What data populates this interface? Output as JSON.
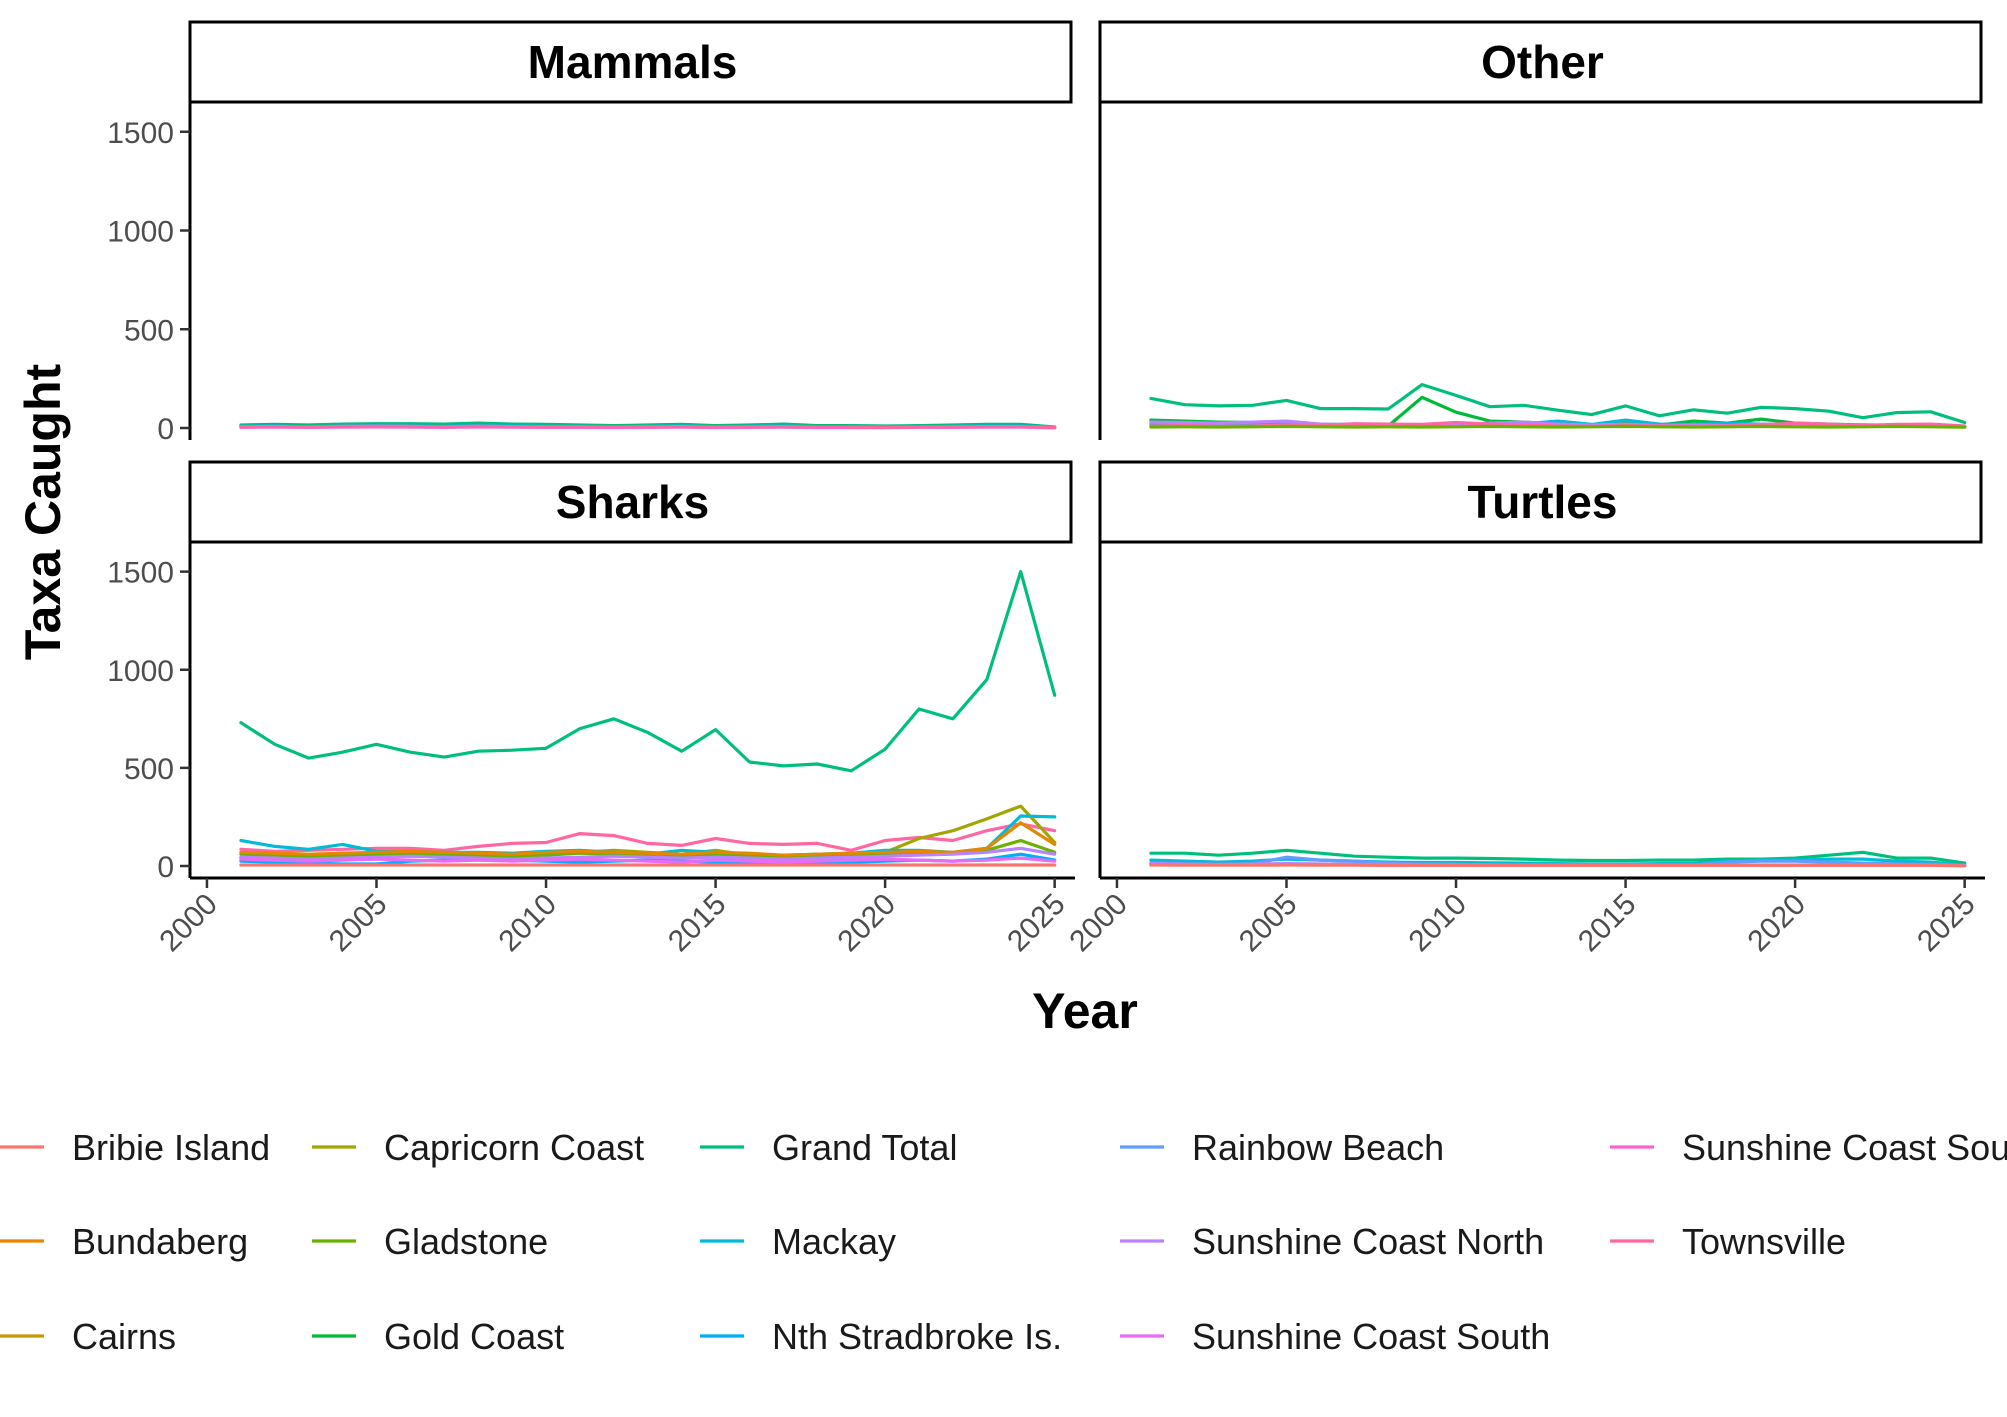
{
  "chart_data": {
    "type": "line",
    "xlabel": "Year",
    "ylabel": "Taxa Caught",
    "xlim": [
      2000,
      2025
    ],
    "ylim": [
      0,
      1600
    ],
    "x_ticks": [
      2000,
      2005,
      2010,
      2015,
      2020,
      2025
    ],
    "y_ticks": [
      0,
      500,
      1000,
      1500
    ],
    "legend_position": "bottom",
    "x": [
      2001,
      2002,
      2003,
      2004,
      2005,
      2006,
      2007,
      2008,
      2009,
      2010,
      2011,
      2012,
      2013,
      2014,
      2015,
      2016,
      2017,
      2018,
      2019,
      2020,
      2021,
      2022,
      2023,
      2024,
      2025
    ],
    "colors": {
      "Bribie Island": "#F8766D",
      "Bundaberg": "#E58700",
      "Cairns": "#C99800",
      "Capricorn Coast": "#A3A500",
      "Gladstone": "#6BB100",
      "Gold Coast": "#00BA38",
      "Grand Total": "#00BF7D",
      "Mackay": "#00BCD8",
      "Nth Stradbroke Is.": "#00B0F6",
      "Rainbow Beach": "#619CFF",
      "Sunshine Coast North": "#B983FF",
      "Sunshine Coast South": "#E76BF3",
      "Sunshine Coast Sou": "#FD61D1",
      "Townsville": "#FF67A4"
    },
    "legend_items": [
      "Bribie Island",
      "Bundaberg",
      "Cairns",
      "Capricorn Coast",
      "Gladstone",
      "Gold Coast",
      "Grand Total",
      "Mackay",
      "Nth Stradbroke Is.",
      "Rainbow Beach",
      "Sunshine Coast North",
      "Sunshine Coast South",
      "Sunshine Coast Sou",
      "Townsville"
    ],
    "panels": [
      {
        "title": "Mammals",
        "series": [
          {
            "name": "Grand Total",
            "values": [
              15,
              18,
              15,
              20,
              22,
              22,
              20,
              25,
              20,
              18,
              15,
              12,
              15,
              18,
              12,
              15,
              20,
              12,
              12,
              10,
              12,
              15,
              18,
              18,
              5
            ]
          },
          {
            "name": "Mackay",
            "values": [
              8,
              10,
              6,
              10,
              12,
              10,
              8,
              12,
              10,
              8,
              8,
              6,
              8,
              10,
              6,
              8,
              10,
              6,
              6,
              5,
              6,
              8,
              10,
              10,
              3
            ]
          },
          {
            "name": "Rainbow Beach",
            "values": [
              5,
              8,
              4,
              6,
              8,
              6,
              5,
              6,
              5,
              4,
              5,
              3,
              4,
              6,
              3,
              4,
              5,
              3,
              3,
              3,
              4,
              5,
              6,
              6,
              2
            ]
          },
          {
            "name": "Sunshine Coast South",
            "values": [
              3,
              4,
              3,
              4,
              5,
              4,
              3,
              5,
              4,
              3,
              3,
              2,
              3,
              4,
              2,
              3,
              4,
              2,
              2,
              2,
              3,
              3,
              4,
              4,
              1
            ]
          },
          {
            "name": "Townsville",
            "values": [
              6,
              7,
              5,
              8,
              9,
              8,
              6,
              9,
              7,
              6,
              6,
              4,
              6,
              7,
              4,
              6,
              7,
              4,
              4,
              3,
              4,
              6,
              7,
              7,
              2
            ]
          }
        ]
      },
      {
        "title": "Other",
        "series": [
          {
            "name": "Grand Total",
            "values": [
              150,
              118,
              112,
              115,
              140,
              98,
              98,
              96,
              220,
              165,
              108,
              115,
              90,
              68,
              112,
              62,
              92,
              75,
              105,
              98,
              85,
              52,
              78,
              82,
              28
            ]
          },
          {
            "name": "Gold Coast",
            "values": [
              40,
              35,
              30,
              28,
              25,
              15,
              12,
              10,
              155,
              80,
              35,
              30,
              20,
              15,
              25,
              15,
              35,
              25,
              45,
              25,
              20,
              15,
              15,
              15,
              8
            ]
          },
          {
            "name": "Mackay",
            "values": [
              20,
              22,
              18,
              20,
              25,
              18,
              18,
              16,
              15,
              18,
              20,
              22,
              35,
              18,
              40,
              20,
              18,
              25,
              20,
              15,
              12,
              10,
              12,
              15,
              8
            ]
          },
          {
            "name": "Sunshine Coast North",
            "values": [
              30,
              28,
              25,
              30,
              35,
              20,
              15,
              12,
              10,
              15,
              25,
              30,
              20,
              15,
              20,
              12,
              15,
              12,
              20,
              18,
              15,
              10,
              15,
              12,
              5
            ]
          },
          {
            "name": "Townsville",
            "values": [
              10,
              12,
              8,
              10,
              15,
              12,
              22,
              20,
              18,
              28,
              20,
              15,
              10,
              8,
              12,
              10,
              8,
              10,
              15,
              25,
              20,
              12,
              18,
              20,
              10
            ]
          },
          {
            "name": "Gladstone",
            "values": [
              5,
              6,
              5,
              6,
              8,
              6,
              5,
              6,
              5,
              6,
              8,
              6,
              5,
              6,
              8,
              6,
              5,
              6,
              8,
              6,
              5,
              6,
              8,
              6,
              4
            ]
          }
        ]
      },
      {
        "title": "Sharks",
        "series": [
          {
            "name": "Grand Total",
            "values": [
              730,
              620,
              550,
              580,
              620,
              580,
              555,
              585,
              590,
              600,
              700,
              750,
              680,
              585,
              695,
              530,
              510,
              520,
              485,
              595,
              800,
              750,
              950,
              1500,
              870
            ]
          },
          {
            "name": "Townsville",
            "values": [
              85,
              75,
              80,
              85,
              90,
              90,
              80,
              100,
              115,
              120,
              165,
              155,
              115,
              105,
              140,
              115,
              110,
              115,
              80,
              130,
              145,
              130,
              180,
              215,
              180
            ]
          },
          {
            "name": "Capricorn Coast",
            "values": [
              40,
              45,
              50,
              55,
              60,
              60,
              55,
              60,
              55,
              60,
              70,
              80,
              70,
              60,
              80,
              55,
              50,
              60,
              55,
              70,
              140,
              180,
              240,
              305,
              120
            ]
          },
          {
            "name": "Mackay",
            "values": [
              130,
              100,
              85,
              110,
              75,
              75,
              70,
              70,
              65,
              75,
              80,
              70,
              60,
              80,
              70,
              60,
              55,
              60,
              65,
              80,
              80,
              70,
              90,
              255,
              250
            ]
          },
          {
            "name": "Gladstone",
            "values": [
              60,
              55,
              50,
              55,
              60,
              65,
              60,
              55,
              50,
              55,
              65,
              60,
              55,
              50,
              60,
              55,
              45,
              50,
              55,
              60,
              70,
              65,
              80,
              130,
              70
            ]
          },
          {
            "name": "Bundaberg",
            "values": [
              70,
              65,
              60,
              65,
              70,
              75,
              70,
              65,
              60,
              70,
              75,
              70,
              65,
              60,
              70,
              65,
              55,
              60,
              65,
              70,
              75,
              70,
              90,
              220,
              110
            ]
          },
          {
            "name": "Nth Stradbroke Is.",
            "values": [
              25,
              20,
              15,
              10,
              10,
              25,
              30,
              35,
              30,
              25,
              20,
              25,
              30,
              25,
              20,
              15,
              10,
              15,
              20,
              25,
              30,
              25,
              35,
              60,
              30
            ]
          },
          {
            "name": "Sunshine Coast North",
            "values": [
              45,
              40,
              35,
              40,
              45,
              50,
              45,
              40,
              35,
              40,
              45,
              50,
              45,
              40,
              45,
              40,
              35,
              40,
              45,
              50,
              55,
              60,
              70,
              90,
              60
            ]
          },
          {
            "name": "Sunshine Coast South",
            "values": [
              35,
              30,
              25,
              30,
              35,
              30,
              25,
              30,
              25,
              30,
              35,
              30,
              25,
              20,
              30,
              25,
              20,
              25,
              30,
              35,
              30,
              25,
              30,
              40,
              25
            ]
          },
          {
            "name": "Bribie Island",
            "values": [
              5,
              5,
              5,
              5,
              5,
              5,
              5,
              5,
              5,
              5,
              5,
              5,
              5,
              5,
              5,
              5,
              5,
              5,
              5,
              5,
              5,
              5,
              5,
              5,
              5
            ]
          }
        ]
      },
      {
        "title": "Turtles",
        "series": [
          {
            "name": "Grand Total",
            "values": [
              65,
              65,
              55,
              65,
              80,
              65,
              50,
              45,
              40,
              40,
              38,
              35,
              30,
              28,
              28,
              30,
              30,
              35,
              35,
              40,
              55,
              70,
              40,
              40,
              15
            ]
          },
          {
            "name": "Mackay",
            "values": [
              30,
              25,
              20,
              25,
              35,
              30,
              25,
              20,
              18,
              18,
              16,
              15,
              12,
              10,
              10,
              12,
              12,
              25,
              30,
              30,
              35,
              35,
              25,
              20,
              5
            ]
          },
          {
            "name": "Rainbow Beach",
            "values": [
              15,
              10,
              8,
              10,
              45,
              30,
              25,
              15,
              10,
              8,
              6,
              5,
              5,
              5,
              5,
              5,
              5,
              20,
              25,
              25,
              20,
              15,
              10,
              8,
              3
            ]
          },
          {
            "name": "Townsville",
            "values": [
              10,
              8,
              6,
              8,
              10,
              8,
              6,
              5,
              5,
              5,
              4,
              4,
              4,
              4,
              4,
              4,
              4,
              null,
              null,
              null,
              null,
              null,
              null,
              null,
              null
            ]
          },
          {
            "name": "Sunshine Coast North",
            "values": [
              12,
              10,
              8,
              10,
              12,
              10,
              8,
              8,
              6,
              6,
              5,
              5,
              5,
              5,
              5,
              5,
              5,
              5,
              5,
              5,
              5,
              5,
              5,
              5,
              2
            ]
          },
          {
            "name": "Bribie Island",
            "values": [
              5,
              4,
              4,
              4,
              5,
              4,
              4,
              3,
              3,
              3,
              3,
              3,
              3,
              3,
              3,
              3,
              3,
              3,
              3,
              3,
              3,
              3,
              3,
              3,
              1
            ]
          }
        ]
      }
    ]
  }
}
